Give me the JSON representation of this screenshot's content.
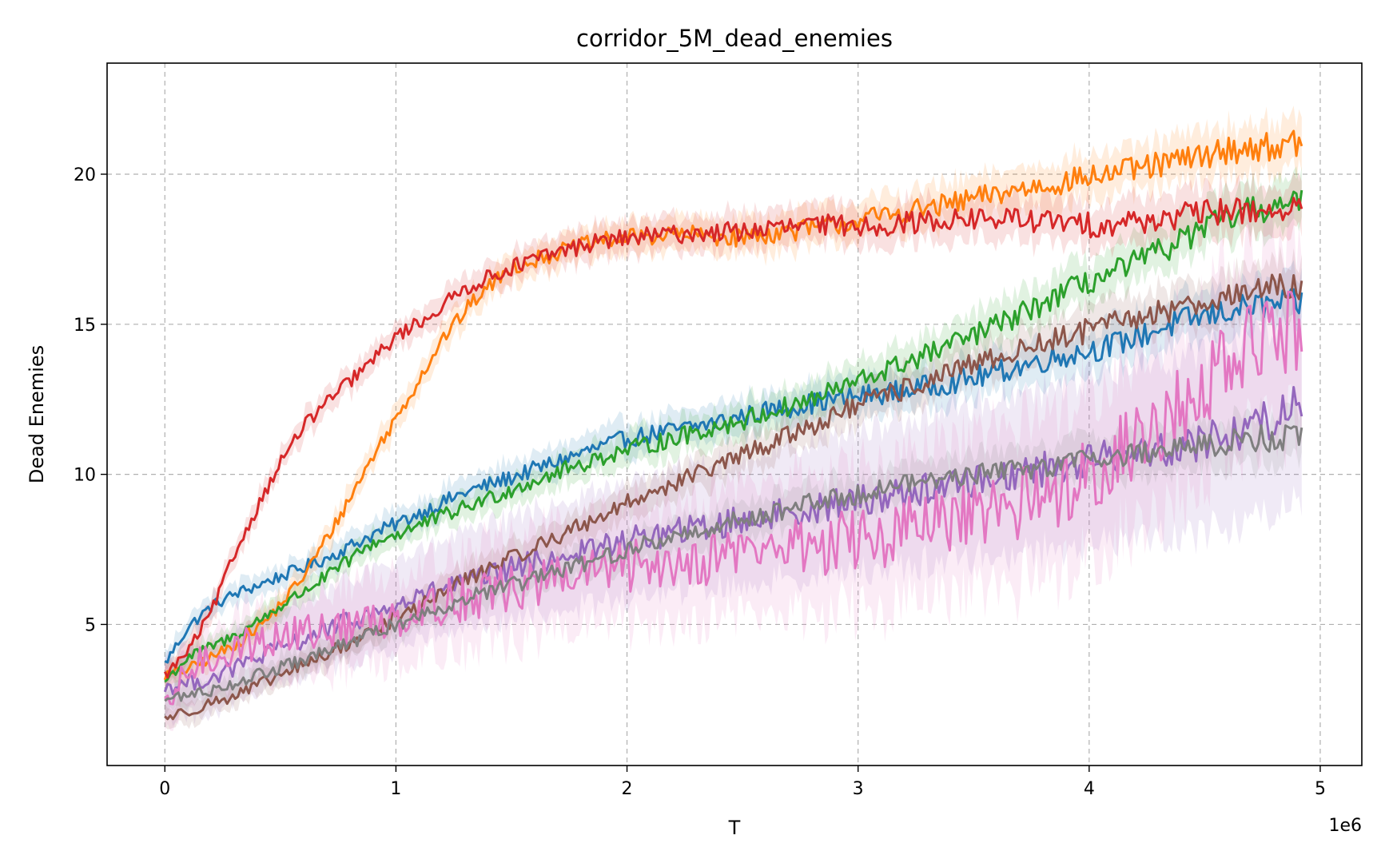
{
  "chart_data": {
    "type": "line",
    "title": "corridor_5M_dead_enemies",
    "xlabel": "T",
    "ylabel": "Dead Enemies",
    "x_offset_label": "1e6",
    "xlim": [
      -0.25,
      5.18
    ],
    "ylim": [
      0.3,
      23.7
    ],
    "xticks": [
      0,
      1,
      2,
      3,
      4,
      5
    ],
    "yticks": [
      5,
      10,
      15,
      20
    ],
    "grid": true,
    "legend": "none",
    "shaded_band": true,
    "series": [
      {
        "color": "#1f77b4",
        "x": [
          0,
          0.1,
          0.2,
          0.3,
          0.5,
          0.7,
          0.9,
          1.1,
          1.3,
          1.5,
          1.8,
          2.0,
          2.3,
          2.6,
          2.9,
          3.2,
          3.5,
          3.8,
          4.1,
          4.4,
          4.7,
          4.9
        ],
        "values": [
          3.7,
          4.9,
          5.6,
          6.0,
          6.6,
          7.2,
          8.0,
          8.7,
          9.4,
          9.9,
          10.7,
          11.2,
          11.6,
          12.1,
          12.5,
          12.8,
          13.2,
          13.8,
          14.3,
          15.1,
          15.6,
          15.7
        ]
      },
      {
        "color": "#ff7f0e",
        "x": [
          0,
          0.1,
          0.2,
          0.3,
          0.45,
          0.6,
          0.75,
          0.9,
          1.05,
          1.2,
          1.35,
          1.5,
          1.7,
          1.9,
          2.2,
          2.5,
          2.8,
          3.1,
          3.4,
          3.7,
          4.0,
          4.3,
          4.6,
          4.9
        ],
        "values": [
          3.3,
          3.5,
          3.9,
          4.3,
          5.2,
          6.6,
          8.5,
          10.6,
          12.5,
          14.5,
          15.9,
          16.9,
          17.4,
          17.8,
          18.0,
          17.9,
          18.2,
          18.6,
          19.0,
          19.5,
          19.9,
          20.3,
          20.8,
          21.0
        ]
      },
      {
        "color": "#2ca02c",
        "x": [
          0,
          0.1,
          0.3,
          0.5,
          0.7,
          0.9,
          1.1,
          1.3,
          1.6,
          1.9,
          2.2,
          2.5,
          2.8,
          3.1,
          3.4,
          3.7,
          3.9,
          4.1,
          4.3,
          4.5,
          4.7,
          4.9
        ],
        "values": [
          3.1,
          3.9,
          4.6,
          5.6,
          6.6,
          7.7,
          8.3,
          8.9,
          9.8,
          10.6,
          11.2,
          11.8,
          12.5,
          13.4,
          14.3,
          15.3,
          16.1,
          16.7,
          17.4,
          18.2,
          18.8,
          19.0
        ]
      },
      {
        "color": "#d62728",
        "x": [
          0,
          0.1,
          0.2,
          0.3,
          0.4,
          0.5,
          0.6,
          0.7,
          0.8,
          0.9,
          1.0,
          1.15,
          1.3,
          1.5,
          1.7,
          1.9,
          2.2,
          2.5,
          2.8,
          3.1,
          3.4,
          3.7,
          4.0,
          4.3,
          4.6,
          4.9
        ],
        "values": [
          3.3,
          4.1,
          5.4,
          7.3,
          8.9,
          10.4,
          11.6,
          12.4,
          13.1,
          13.8,
          14.6,
          15.3,
          16.2,
          16.9,
          17.4,
          17.8,
          18.0,
          18.1,
          18.3,
          18.3,
          18.5,
          18.5,
          18.3,
          18.5,
          18.8,
          18.8
        ]
      },
      {
        "color": "#9467bd",
        "x": [
          0,
          0.2,
          0.4,
          0.6,
          0.8,
          1.0,
          1.2,
          1.4,
          1.6,
          1.8,
          2.0,
          2.3,
          2.6,
          2.9,
          3.2,
          3.5,
          3.8,
          4.1,
          4.4,
          4.6,
          4.8,
          4.92
        ],
        "values": [
          2.9,
          3.2,
          3.9,
          4.5,
          5.1,
          5.6,
          6.2,
          6.6,
          7.1,
          7.4,
          7.8,
          8.2,
          8.6,
          9.0,
          9.4,
          9.8,
          10.2,
          10.6,
          11.0,
          11.3,
          11.9,
          12.5
        ]
      },
      {
        "color": "#8c564b",
        "x": [
          0,
          0.1,
          0.2,
          0.3,
          0.5,
          0.7,
          0.9,
          1.1,
          1.3,
          1.5,
          1.8,
          2.1,
          2.4,
          2.7,
          3.0,
          3.3,
          3.6,
          3.9,
          4.2,
          4.5,
          4.7,
          4.92
        ],
        "values": [
          1.9,
          2.1,
          2.4,
          2.6,
          3.3,
          4.0,
          4.8,
          5.6,
          6.5,
          7.2,
          8.3,
          9.4,
          10.3,
          11.3,
          12.3,
          13.1,
          13.9,
          14.6,
          15.2,
          15.8,
          16.1,
          16.3
        ]
      },
      {
        "color": "#e377c2",
        "x": [
          0,
          0.1,
          0.3,
          0.5,
          0.7,
          0.9,
          1.1,
          1.3,
          1.5,
          1.7,
          1.9,
          2.1,
          2.3,
          2.5,
          2.7,
          2.9,
          3.1,
          3.3,
          3.5,
          3.7,
          3.9,
          4.1,
          4.3,
          4.5,
          4.7,
          4.92
        ],
        "values": [
          2.0,
          3.5,
          4.2,
          4.6,
          4.8,
          5.1,
          5.5,
          5.9,
          6.2,
          6.5,
          6.8,
          7.0,
          7.2,
          7.5,
          7.6,
          7.7,
          7.9,
          8.3,
          8.5,
          9.0,
          9.6,
          10.5,
          11.6,
          13.0,
          14.3,
          14.9
        ]
      },
      {
        "color": "#7f7f7f",
        "x": [
          0,
          0.2,
          0.4,
          0.6,
          0.8,
          1.0,
          1.2,
          1.4,
          1.6,
          1.8,
          2.0,
          2.3,
          2.6,
          2.9,
          3.2,
          3.5,
          3.8,
          4.1,
          4.4,
          4.6,
          4.8,
          4.92
        ],
        "values": [
          2.5,
          2.8,
          3.3,
          3.8,
          4.4,
          5.0,
          5.6,
          6.1,
          6.5,
          7.0,
          7.5,
          8.1,
          8.7,
          9.2,
          9.7,
          10.0,
          10.3,
          10.6,
          10.9,
          11.1,
          11.2,
          11.3
        ]
      }
    ]
  }
}
